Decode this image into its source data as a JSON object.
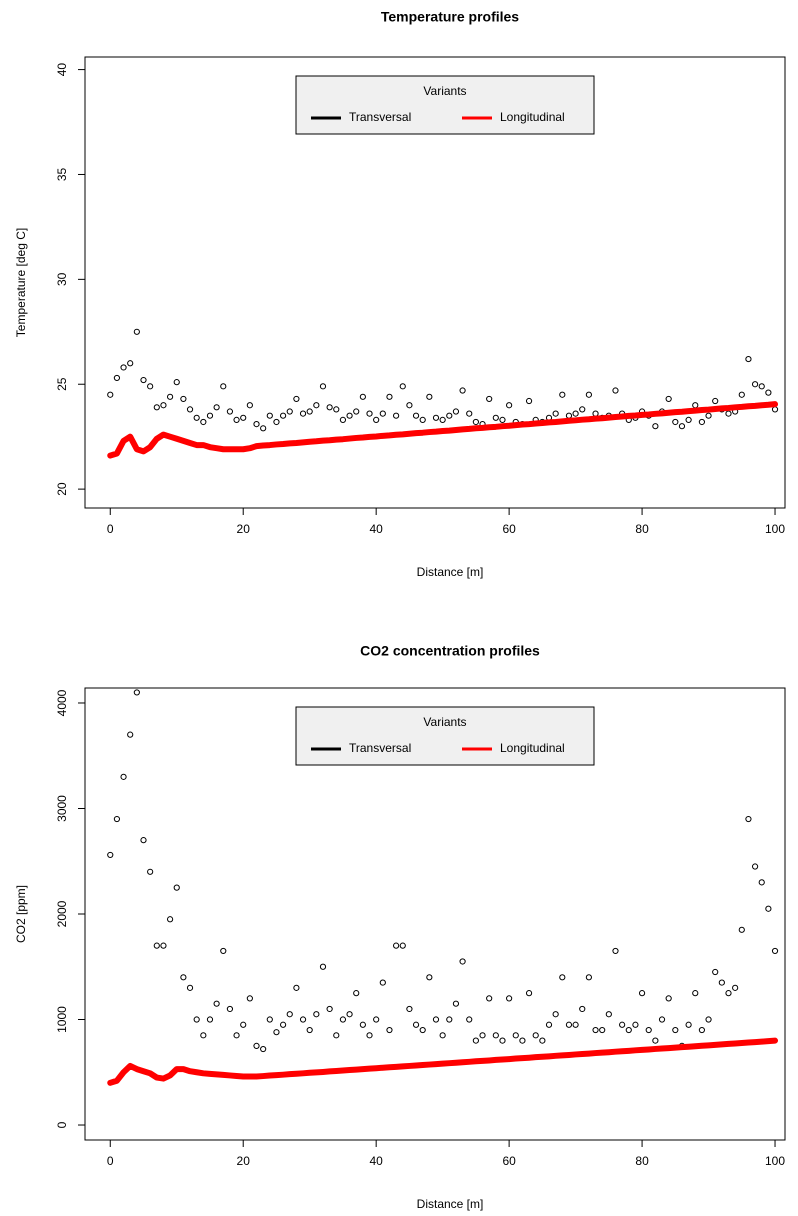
{
  "chart_data": [
    {
      "type": "scatter",
      "title": "Temperature profiles",
      "xlabel": "Distance [m]",
      "ylabel": "Temperature [deg C]",
      "legend_title": "Variants",
      "legend": "top",
      "xlim": [
        -3.8,
        101.5
      ],
      "ylim": [
        19.1,
        40.6
      ],
      "xticks": [
        0,
        20,
        40,
        60,
        80,
        100
      ],
      "yticks": [
        20,
        25,
        30,
        35,
        40
      ],
      "x": [
        0,
        1,
        2,
        3,
        4,
        5,
        6,
        7,
        8,
        9,
        10,
        11,
        12,
        13,
        14,
        15,
        16,
        17,
        18,
        19,
        20,
        21,
        22,
        23,
        24,
        25,
        26,
        27,
        28,
        29,
        30,
        31,
        32,
        33,
        34,
        35,
        36,
        37,
        38,
        39,
        40,
        41,
        42,
        43,
        44,
        45,
        46,
        47,
        48,
        49,
        50,
        51,
        52,
        53,
        54,
        55,
        56,
        57,
        58,
        59,
        60,
        61,
        62,
        63,
        64,
        65,
        66,
        67,
        68,
        69,
        70,
        71,
        72,
        73,
        74,
        75,
        76,
        77,
        78,
        79,
        80,
        81,
        82,
        83,
        84,
        85,
        86,
        87,
        88,
        89,
        90,
        91,
        92,
        93,
        94,
        95,
        96,
        97,
        98,
        99,
        100
      ],
      "series": [
        {
          "name": "Transversal",
          "color": "#000000",
          "marker": "circle",
          "values": [
            24.5,
            25.3,
            25.8,
            26.0,
            27.5,
            25.2,
            24.9,
            23.9,
            24.0,
            24.4,
            25.1,
            24.3,
            23.8,
            23.4,
            23.2,
            23.5,
            23.9,
            24.9,
            23.7,
            23.3,
            23.4,
            24.0,
            23.1,
            22.9,
            23.5,
            23.2,
            23.5,
            23.7,
            24.3,
            23.6,
            23.7,
            24.0,
            24.9,
            23.9,
            23.8,
            23.3,
            23.5,
            23.7,
            24.4,
            23.6,
            23.3,
            23.6,
            24.4,
            23.5,
            24.9,
            24.0,
            23.5,
            23.3,
            24.4,
            23.4,
            23.3,
            23.5,
            23.7,
            24.7,
            23.6,
            23.2,
            23.1,
            24.3,
            23.4,
            23.3,
            24.0,
            23.2,
            23.1,
            24.2,
            23.3,
            23.2,
            23.4,
            23.6,
            24.5,
            23.5,
            23.6,
            23.8,
            24.5,
            23.6,
            23.4,
            23.5,
            24.7,
            23.6,
            23.3,
            23.4,
            23.7,
            23.5,
            23.0,
            23.7,
            24.3,
            23.2,
            23.0,
            23.3,
            24.0,
            23.2,
            23.5,
            24.2,
            23.8,
            23.6,
            23.7,
            24.5,
            26.2,
            25.0,
            24.9,
            24.6,
            23.8
          ]
        },
        {
          "name": "Longitudinal",
          "color": "#ff0000",
          "marker": "line",
          "values": [
            21.6,
            21.7,
            22.3,
            22.5,
            21.9,
            21.8,
            22.0,
            22.4,
            22.6,
            22.5,
            22.4,
            22.3,
            22.2,
            22.1,
            22.1,
            22.0,
            21.95,
            21.9,
            21.9,
            21.9,
            21.9,
            21.95,
            22.05,
            22.08,
            22.1,
            22.13,
            22.15,
            22.18,
            22.2,
            22.23,
            22.26,
            22.28,
            22.31,
            22.33,
            22.36,
            22.38,
            22.41,
            22.44,
            22.46,
            22.49,
            22.51,
            22.54,
            22.56,
            22.59,
            22.61,
            22.64,
            22.67,
            22.69,
            22.72,
            22.74,
            22.77,
            22.79,
            22.82,
            22.85,
            22.87,
            22.9,
            22.92,
            22.95,
            22.97,
            23.0,
            23.02,
            23.05,
            23.08,
            23.1,
            23.13,
            23.15,
            23.18,
            23.2,
            23.23,
            23.26,
            23.28,
            23.31,
            23.33,
            23.36,
            23.38,
            23.41,
            23.44,
            23.46,
            23.49,
            23.51,
            23.54,
            23.56,
            23.59,
            23.61,
            23.64,
            23.67,
            23.69,
            23.72,
            23.74,
            23.77,
            23.79,
            23.82,
            23.85,
            23.87,
            23.9,
            23.92,
            23.95,
            23.97,
            24.0,
            24.02,
            24.05
          ]
        }
      ]
    },
    {
      "type": "scatter",
      "title": "CO2 concentration profiles",
      "xlabel": "Distance [m]",
      "ylabel": "CO2 [ppm]",
      "legend_title": "Variants",
      "legend": "top",
      "xlim": [
        -3.8,
        101.5
      ],
      "ylim": [
        -142,
        4142
      ],
      "xticks": [
        0,
        20,
        40,
        60,
        80,
        100
      ],
      "yticks": [
        0,
        1000,
        2000,
        3000,
        4000
      ],
      "x": [
        0,
        1,
        2,
        3,
        4,
        5,
        6,
        7,
        8,
        9,
        10,
        11,
        12,
        13,
        14,
        15,
        16,
        17,
        18,
        19,
        20,
        21,
        22,
        23,
        24,
        25,
        26,
        27,
        28,
        29,
        30,
        31,
        32,
        33,
        34,
        35,
        36,
        37,
        38,
        39,
        40,
        41,
        42,
        43,
        44,
        45,
        46,
        47,
        48,
        49,
        50,
        51,
        52,
        53,
        54,
        55,
        56,
        57,
        58,
        59,
        60,
        61,
        62,
        63,
        64,
        65,
        66,
        67,
        68,
        69,
        70,
        71,
        72,
        73,
        74,
        75,
        76,
        77,
        78,
        79,
        80,
        81,
        82,
        83,
        84,
        85,
        86,
        87,
        88,
        89,
        90,
        91,
        92,
        93,
        94,
        95,
        96,
        97,
        98,
        99,
        100
      ],
      "series": [
        {
          "name": "Transversal",
          "color": "#000000",
          "marker": "circle",
          "values": [
            2560,
            2900,
            3300,
            3700,
            4100,
            2700,
            2400,
            1700,
            1700,
            1950,
            2250,
            1400,
            1300,
            1000,
            850,
            1000,
            1150,
            1650,
            1100,
            850,
            950,
            1200,
            750,
            720,
            1000,
            880,
            950,
            1050,
            1300,
            1000,
            900,
            1050,
            1500,
            1100,
            850,
            1000,
            1050,
            1250,
            950,
            850,
            1000,
            1350,
            900,
            1700,
            1700,
            1100,
            950,
            900,
            1400,
            1000,
            850,
            1000,
            1150,
            1550,
            1000,
            800,
            850,
            1200,
            850,
            800,
            1200,
            850,
            800,
            1250,
            850,
            800,
            950,
            1050,
            1400,
            950,
            950,
            1100,
            1400,
            900,
            900,
            1050,
            1650,
            950,
            900,
            950,
            1250,
            900,
            800,
            1000,
            1200,
            900,
            750,
            950,
            1250,
            900,
            1000,
            1450,
            1350,
            1250,
            1300,
            1850,
            2900,
            2450,
            2300,
            2050,
            1650
          ]
        },
        {
          "name": "Longitudinal",
          "color": "#ff0000",
          "marker": "line",
          "values": [
            400,
            420,
            500,
            560,
            530,
            510,
            490,
            450,
            440,
            470,
            530,
            530,
            510,
            500,
            490,
            485,
            480,
            475,
            470,
            465,
            460,
            460,
            460,
            464,
            469,
            473,
            477,
            482,
            486,
            490,
            495,
            499,
            503,
            508,
            512,
            517,
            521,
            525,
            530,
            534,
            538,
            543,
            547,
            551,
            556,
            560,
            564,
            569,
            573,
            577,
            582,
            586,
            590,
            595,
            599,
            604,
            608,
            612,
            617,
            621,
            625,
            630,
            634,
            638,
            643,
            647,
            651,
            656,
            660,
            664,
            669,
            673,
            677,
            682,
            686,
            690,
            695,
            699,
            703,
            708,
            712,
            716,
            721,
            725,
            729,
            734,
            738,
            742,
            747,
            751,
            755,
            760,
            764,
            769,
            773,
            777,
            782,
            786,
            790,
            795,
            800
          ]
        }
      ]
    }
  ]
}
